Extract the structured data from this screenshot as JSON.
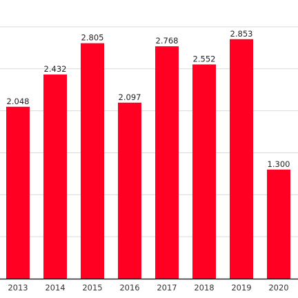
{
  "chart_data": {
    "type": "bar",
    "categories": [
      "2013",
      "2014",
      "2015",
      "2016",
      "2017",
      "2018",
      "2019",
      "2020"
    ],
    "values": [
      2048,
      2432,
      2805,
      2097,
      2768,
      2552,
      2853,
      1300
    ],
    "value_labels": [
      "2.048",
      "2.432",
      "2.805",
      "2.097",
      "2.768",
      "2.552",
      "2.853",
      "1.300"
    ],
    "ylim": [
      0,
      3000
    ],
    "grid": true,
    "bar_color": "#ff0022",
    "title": "",
    "xlabel": "",
    "ylabel": ""
  }
}
